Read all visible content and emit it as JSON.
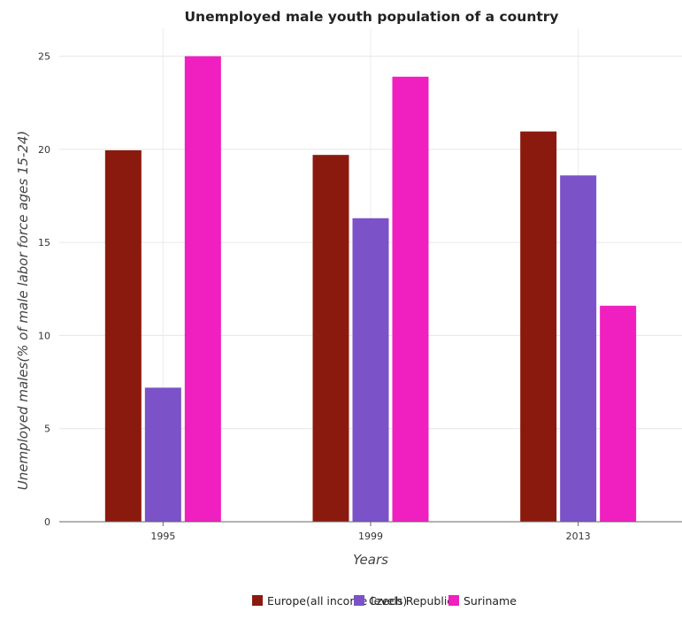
{
  "chart_data": {
    "type": "bar",
    "title": "Unemployed male youth population of a country",
    "xlabel": "Years",
    "ylabel": "Unemployed males(% of male labor force ages 15-24)",
    "categories": [
      "1995",
      "1999",
      "2013"
    ],
    "ylim": [
      0,
      26.5
    ],
    "yticks": [
      0,
      5,
      10,
      15,
      20,
      25
    ],
    "grid": true,
    "legend_position": "bottom-center",
    "series": [
      {
        "name": "Europe(all income levels)",
        "color": "#8b1a0e",
        "values": [
          19.95,
          19.7,
          20.96
        ]
      },
      {
        "name": "Czech Republic",
        "color": "#7b52c7",
        "values": [
          7.2,
          16.3,
          18.6
        ]
      },
      {
        "name": "Suriname",
        "color": "#ef1fc0",
        "values": [
          25.0,
          23.9,
          11.6
        ]
      }
    ]
  }
}
